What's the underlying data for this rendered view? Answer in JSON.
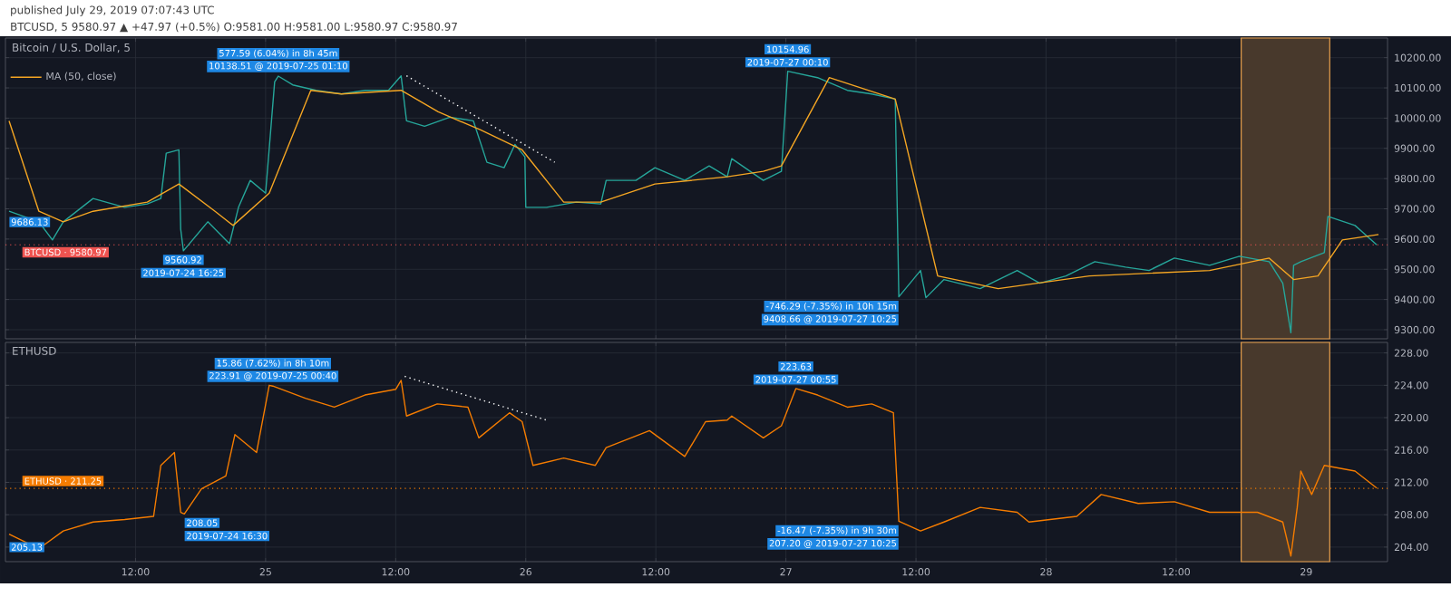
{
  "chart_data": [
    {
      "type": "line",
      "title": "Bitcoin / U.S. Dollar, 5",
      "annotations": [
        "published July 29, 2019 07:07:43 UTC",
        "BTCUSD, 5  9580.97 ▲ +47.97 (+0.5%) O:9581.00 H:9581.00 L:9580.97 C:9580.97",
        {
          "text": "9686.13",
          "x": "2019-07-24T00:20",
          "y": 9686.13
        },
        {
          "text": "9560.92",
          "x": "2019-07-24T16:25",
          "y": 9560.92
        },
        {
          "text": "2019-07-24 16:25",
          "x": "2019-07-24T16:25",
          "y": 9560.92
        },
        {
          "text": "577.59 (6.04%) in 8h 45m",
          "x": "2019-07-25T01:10",
          "y": 10138.51
        },
        {
          "text": "10138.51 @ 2019-07-25 01:10",
          "x": "2019-07-25T01:10",
          "y": 10138.51
        },
        {
          "text": "10154.96",
          "x": "2019-07-27T00:10",
          "y": 10154.96
        },
        {
          "text": "2019-07-27 00:10",
          "x": "2019-07-27T00:10",
          "y": 10154.96
        },
        {
          "text": "-746.29 (-7.35%) in 10h 15m",
          "x": "2019-07-27T10:25",
          "y": 9408.66
        },
        {
          "text": "9408.66 @ 2019-07-27 10:25",
          "x": "2019-07-27T10:25",
          "y": 9408.66
        }
      ],
      "xlim": [
        "2019-07-24T00:00",
        "2019-07-29T07:30"
      ],
      "ylim": [
        9270,
        10265
      ],
      "xticks": [
        {
          "value": "2019-07-24T12:00",
          "label": null
        },
        {
          "value": "2019-07-25T00:00",
          "label": null
        },
        {
          "value": "2019-07-25T12:00",
          "label": null
        },
        {
          "value": "2019-07-26T00:00",
          "label": null
        },
        {
          "value": "2019-07-26T12:00",
          "label": null
        },
        {
          "value": "2019-07-27T00:00",
          "label": null
        },
        {
          "value": "2019-07-27T12:00",
          "label": null
        },
        {
          "value": "2019-07-28T00:00",
          "label": null
        },
        {
          "value": "2019-07-28T12:00",
          "label": null
        },
        {
          "value": "2019-07-29T00:00",
          "label": null
        }
      ],
      "yticks": [
        {
          "value": 9300,
          "label": "9300.00"
        },
        {
          "value": 9400,
          "label": "9400.00"
        },
        {
          "value": 9500,
          "label": "9500.00"
        },
        {
          "value": 9600,
          "label": "9600.00"
        },
        {
          "value": 9700,
          "label": "9700.00"
        },
        {
          "value": 9800,
          "label": "9800.00"
        },
        {
          "value": 9900,
          "label": "9900.00"
        },
        {
          "value": 10000,
          "label": "10000.00"
        },
        {
          "value": 10100,
          "label": "10100.00"
        },
        {
          "value": 10200,
          "label": "10200.00"
        }
      ],
      "grid": true,
      "legend": "top left",
      "marker": "none",
      "tick_labels": "y",
      "ref_lines": [
        {
          "axis": "y",
          "value": 9580.97,
          "label": "BTCUSD · 9580.97",
          "color": "#ef5350",
          "line_style": "dotted"
        }
      ],
      "bands": [
        {
          "axis": "x",
          "from": "2019-07-28T18:00",
          "to": "2019-07-29T02:10",
          "color": "#e8a04c"
        }
      ],
      "series": [
        {
          "color": "#26a69a",
          "line_style": "solid",
          "x": [
            "2019-07-24T00:20",
            "2019-07-24T03:05",
            "2019-07-24T04:20",
            "2019-07-24T05:20",
            "2019-07-24T08:05",
            "2019-07-24T11:00",
            "2019-07-24T13:05",
            "2019-07-24T14:20",
            "2019-07-24T14:50",
            "2019-07-24T16:00",
            "2019-07-24T16:10",
            "2019-07-24T16:25",
            "2019-07-24T18:40",
            "2019-07-24T20:40",
            "2019-07-24T21:30",
            "2019-07-24T22:35",
            "2019-07-25T00:00",
            "2019-07-25T00:50",
            "2019-07-25T01:10",
            "2019-07-25T02:30",
            "2019-07-25T04:40",
            "2019-07-25T07:00",
            "2019-07-25T09:10",
            "2019-07-25T11:20",
            "2019-07-25T12:30",
            "2019-07-25T13:00",
            "2019-07-25T14:40",
            "2019-07-25T17:00",
            "2019-07-25T19:10",
            "2019-07-25T20:25",
            "2019-07-25T22:00",
            "2019-07-25T23:00",
            "2019-07-25T23:55",
            "2019-07-26T00:00",
            "2019-07-26T01:55",
            "2019-07-26T04:40",
            "2019-07-26T06:55",
            "2019-07-26T07:25",
            "2019-07-26T10:10",
            "2019-07-26T11:55",
            "2019-07-26T14:40",
            "2019-07-26T16:55",
            "2019-07-26T18:35",
            "2019-07-26T19:00",
            "2019-07-26T21:55",
            "2019-07-26T23:35",
            "2019-07-27T00:10",
            "2019-07-27T02:55",
            "2019-07-27T05:40",
            "2019-07-27T07:55",
            "2019-07-27T10:05",
            "2019-07-27T10:25",
            "2019-07-27T12:25",
            "2019-07-27T12:55",
            "2019-07-27T14:35",
            "2019-07-27T17:55",
            "2019-07-27T21:20",
            "2019-07-27T23:25",
            "2019-07-28T01:50",
            "2019-07-28T04:30",
            "2019-07-28T07:20",
            "2019-07-28T09:30",
            "2019-07-28T11:50",
            "2019-07-28T15:05",
            "2019-07-28T17:50",
            "2019-07-28T20:35",
            "2019-07-28T21:50",
            "2019-07-28T22:35",
            "2019-07-28T22:50",
            "2019-07-28T23:30",
            "2019-07-29T01:40",
            "2019-07-29T02:00",
            "2019-07-29T04:30",
            "2019-07-29T06:30"
          ],
          "values": [
            9692,
            9657,
            9597,
            9657,
            9734,
            9705,
            9716,
            9734,
            9884,
            9895,
            9633,
            9561,
            9657,
            9585,
            9705,
            9794,
            9752,
            10120,
            10139,
            10110,
            10092,
            10080,
            10092,
            10092,
            10140,
            9991,
            9973,
            10003,
            9991,
            9854,
            9836,
            9913,
            9872,
            9705,
            9705,
            9722,
            9716,
            9794,
            9794,
            9836,
            9794,
            9842,
            9806,
            9866,
            9794,
            9824,
            10155,
            10134,
            10092,
            10080,
            10063,
            9409,
            9496,
            9406,
            9466,
            9436,
            9496,
            9454,
            9478,
            9525,
            9507,
            9496,
            9537,
            9513,
            9543,
            9525,
            9454,
            9290,
            9513,
            9525,
            9555,
            9675,
            9645,
            9581
          ]
        },
        {
          "name": "MA (50, close)",
          "color": "#f5a623",
          "line_style": "solid",
          "x": [
            "2019-07-24T00:20",
            "2019-07-24T03:05",
            "2019-07-24T05:20",
            "2019-07-24T08:05",
            "2019-07-24T13:05",
            "2019-07-24T16:00",
            "2019-07-24T19:20",
            "2019-07-24T21:00",
            "2019-07-25T00:20",
            "2019-07-25T04:10",
            "2019-07-25T07:00",
            "2019-07-25T12:30",
            "2019-07-25T15:55",
            "2019-07-25T19:50",
            "2019-07-25T23:40",
            "2019-07-26T03:30",
            "2019-07-26T06:55",
            "2019-07-26T11:55",
            "2019-07-26T18:35",
            "2019-07-26T21:55",
            "2019-07-26T23:35",
            "2019-07-27T04:00",
            "2019-07-27T10:05",
            "2019-07-27T14:00",
            "2019-07-27T19:35",
            "2019-07-28T04:00",
            "2019-07-28T15:05",
            "2019-07-28T20:35",
            "2019-07-28T22:50",
            "2019-07-29T01:05",
            "2019-07-29T03:20",
            "2019-07-29T06:40"
          ],
          "values": [
            9991,
            9692,
            9657,
            9692,
            9722,
            9782,
            9692,
            9645,
            9752,
            10092,
            10080,
            10092,
            10021,
            9961,
            9895,
            9722,
            9722,
            9782,
            9806,
            9824,
            9842,
            10134,
            10063,
            9478,
            9436,
            9478,
            9496,
            9537,
            9466,
            9478,
            9597,
            9615
          ]
        },
        {
          "color": "#ffffff",
          "line_style": "dotted",
          "x": [
            "2019-07-25T13:00",
            "2019-07-26T02:40"
          ],
          "values": [
            10140,
            9854
          ]
        }
      ]
    },
    {
      "type": "line",
      "title": "ETHUSD",
      "annotations": [
        {
          "text": "205.13",
          "x": "2019-07-24T00:20",
          "y": 205.1
        },
        {
          "text": "208.05",
          "x": "2019-07-24T16:30",
          "y": 208.1
        },
        {
          "text": "2019-07-24 16:30",
          "x": "2019-07-24T16:30",
          "y": 208.1
        },
        {
          "text": "15.86 (7.62%) in 8h 10m",
          "x": "2019-07-25T00:40",
          "y": 223.9
        },
        {
          "text": "223.91 @ 2019-07-25 00:40",
          "x": "2019-07-25T00:40",
          "y": 223.9
        },
        {
          "text": "223.63",
          "x": "2019-07-27T00:55",
          "y": 223.6
        },
        {
          "text": "2019-07-27 00:55",
          "x": "2019-07-27T00:55",
          "y": 223.6
        },
        {
          "text": "-16.47 (-7.35%) in 9h 30m",
          "x": "2019-07-27T10:25",
          "y": 207.2
        },
        {
          "text": "207.20 @ 2019-07-27 10:25",
          "x": "2019-07-27T10:25",
          "y": 207.2
        }
      ],
      "xlim": [
        "2019-07-24T00:00",
        "2019-07-29T07:30"
      ],
      "ylim": [
        202.2,
        229.3
      ],
      "xticks": [
        {
          "value": "2019-07-24T12:00",
          "label": "12:00"
        },
        {
          "value": "2019-07-25T00:00",
          "label": "25"
        },
        {
          "value": "2019-07-25T12:00",
          "label": "12:00"
        },
        {
          "value": "2019-07-26T00:00",
          "label": "26"
        },
        {
          "value": "2019-07-26T12:00",
          "label": "12:00"
        },
        {
          "value": "2019-07-27T00:00",
          "label": "27"
        },
        {
          "value": "2019-07-27T12:00",
          "label": "12:00"
        },
        {
          "value": "2019-07-28T00:00",
          "label": "28"
        },
        {
          "value": "2019-07-28T12:00",
          "label": "12:00"
        },
        {
          "value": "2019-07-29T00:00",
          "label": "29"
        }
      ],
      "yticks": [
        {
          "value": 204,
          "label": "204.00"
        },
        {
          "value": 208,
          "label": "208.00"
        },
        {
          "value": 212,
          "label": "212.00"
        },
        {
          "value": 216,
          "label": "216.00"
        },
        {
          "value": 220,
          "label": "220.00"
        },
        {
          "value": 224,
          "label": "224.00"
        },
        {
          "value": 228,
          "label": "228.00"
        }
      ],
      "grid": true,
      "marker": "none",
      "ref_lines": [
        {
          "axis": "y",
          "value": 211.25,
          "label": "ETHUSD · 211.25",
          "color": "#f57c00",
          "line_style": "dotted"
        }
      ],
      "bands": [
        {
          "axis": "x",
          "from": "2019-07-28T18:00",
          "to": "2019-07-29T02:10",
          "color": "#e8a04c"
        }
      ],
      "series": [
        {
          "color": "#f57c00",
          "line_style": "solid",
          "x": [
            "2019-07-24T00:20",
            "2019-07-24T03:05",
            "2019-07-24T05:20",
            "2019-07-24T08:05",
            "2019-07-24T11:00",
            "2019-07-24T13:40",
            "2019-07-24T14:20",
            "2019-07-24T15:35",
            "2019-07-24T16:10",
            "2019-07-24T16:30",
            "2019-07-24T18:05",
            "2019-07-24T20:20",
            "2019-07-24T21:10",
            "2019-07-24T23:10",
            "2019-07-25T00:20",
            "2019-07-25T00:40",
            "2019-07-25T03:40",
            "2019-07-25T06:20",
            "2019-07-25T09:10",
            "2019-07-25T12:00",
            "2019-07-25T12:30",
            "2019-07-25T13:00",
            "2019-07-25T15:50",
            "2019-07-25T18:40",
            "2019-07-25T19:40",
            "2019-07-25T22:30",
            "2019-07-25T23:40",
            "2019-07-26T00:40",
            "2019-07-26T03:30",
            "2019-07-26T06:25",
            "2019-07-26T07:25",
            "2019-07-26T11:25",
            "2019-07-26T14:40",
            "2019-07-26T16:35",
            "2019-07-26T18:35",
            "2019-07-26T19:00",
            "2019-07-26T21:55",
            "2019-07-26T23:35",
            "2019-07-27T00:55",
            "2019-07-27T02:55",
            "2019-07-27T05:40",
            "2019-07-27T07:55",
            "2019-07-27T09:55",
            "2019-07-27T10:25",
            "2019-07-27T12:25",
            "2019-07-27T14:35",
            "2019-07-27T17:55",
            "2019-07-27T21:20",
            "2019-07-27T22:25",
            "2019-07-28T02:50",
            "2019-07-28T05:05",
            "2019-07-28T08:30",
            "2019-07-28T11:50",
            "2019-07-28T15:05",
            "2019-07-28T19:30",
            "2019-07-28T21:50",
            "2019-07-28T22:35",
            "2019-07-28T23:10",
            "2019-07-28T23:30",
            "2019-07-29T00:30",
            "2019-07-29T01:40",
            "2019-07-29T04:30",
            "2019-07-29T06:30"
          ],
          "values": [
            205.6,
            203.8,
            206.0,
            207.1,
            207.4,
            207.8,
            214.1,
            215.7,
            208.3,
            208.1,
            211.2,
            212.8,
            217.9,
            215.7,
            224.0,
            223.9,
            222.4,
            221.3,
            222.8,
            223.5,
            224.6,
            220.2,
            221.7,
            221.3,
            217.5,
            220.6,
            219.5,
            214.1,
            215.0,
            214.1,
            216.3,
            218.4,
            215.2,
            219.5,
            219.7,
            220.2,
            217.5,
            219.0,
            223.6,
            222.8,
            221.3,
            221.7,
            220.6,
            207.2,
            206.0,
            207.1,
            208.9,
            208.3,
            207.1,
            207.8,
            210.5,
            209.4,
            209.6,
            208.3,
            208.3,
            207.1,
            202.9,
            208.9,
            213.4,
            210.5,
            214.1,
            213.4,
            211.3
          ]
        },
        {
          "color": "#ffffff",
          "line_style": "dotted",
          "x": [
            "2019-07-25T12:50",
            "2019-07-26T01:55"
          ],
          "values": [
            225.1,
            219.7
          ]
        }
      ]
    }
  ]
}
